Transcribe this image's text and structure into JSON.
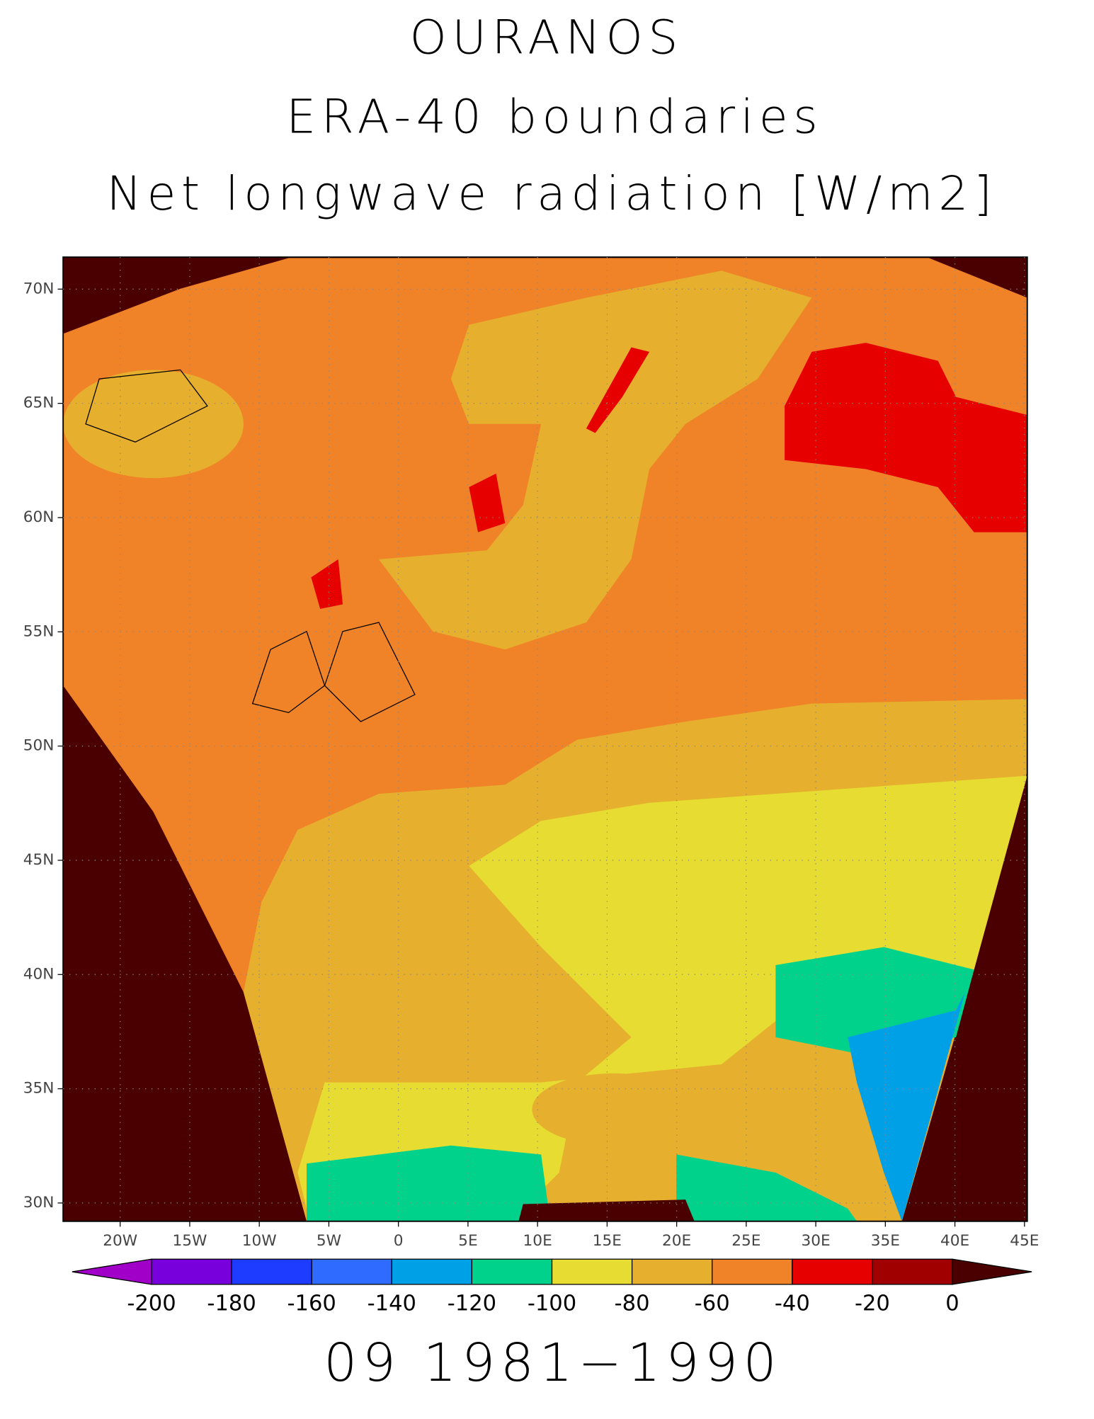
{
  "title_lines": [
    "OURANOS",
    "ERA-40 boundaries",
    "Net longwave radiation [W/m2]"
  ],
  "map": {
    "lonlim": [
      -24.1,
      45.2
    ],
    "latlim": [
      29.2,
      71.4
    ],
    "lon_ticks": [
      {
        "value": -20,
        "label": "20W"
      },
      {
        "value": -15,
        "label": "15W"
      },
      {
        "value": -10,
        "label": "10W"
      },
      {
        "value": -5,
        "label": "5W"
      },
      0,
      {
        "value": 5,
        "label": "5E"
      },
      {
        "value": 10,
        "label": "10E"
      },
      {
        "value": 15,
        "label": "15E"
      },
      {
        "value": 20,
        "label": "20E"
      },
      {
        "value": 25,
        "label": "25E"
      },
      {
        "value": 30,
        "label": "30E"
      },
      {
        "value": 35,
        "label": "35E"
      },
      {
        "value": 40,
        "label": "40E"
      },
      {
        "value": 45,
        "label": "45E"
      }
    ],
    "lat_ticks": [
      {
        "value": 70,
        "label": "70N"
      },
      {
        "value": 65,
        "label": "65N"
      },
      {
        "value": 60,
        "label": "60N"
      },
      {
        "value": 55,
        "label": "55N"
      },
      {
        "value": 50,
        "label": "50N"
      },
      {
        "value": 45,
        "label": "45N"
      },
      {
        "value": 40,
        "label": "40N"
      },
      {
        "value": 35,
        "label": "35N"
      },
      {
        "value": 30,
        "label": "30N"
      }
    ]
  },
  "colorbar": {
    "levels": [
      -200,
      -180,
      -160,
      -140,
      -120,
      -100,
      -80,
      -60,
      -40,
      -20,
      0
    ],
    "colors": [
      "#a000c8",
      "#7800dc",
      "#1e3cff",
      "#2f6bff",
      "#00a0e6",
      "#00d28c",
      "#e6dc32",
      "#e6af2d",
      "#f08228",
      "#e60000",
      "#a00000",
      "#4a0000"
    ]
  },
  "footer": "09 1981−1990"
}
